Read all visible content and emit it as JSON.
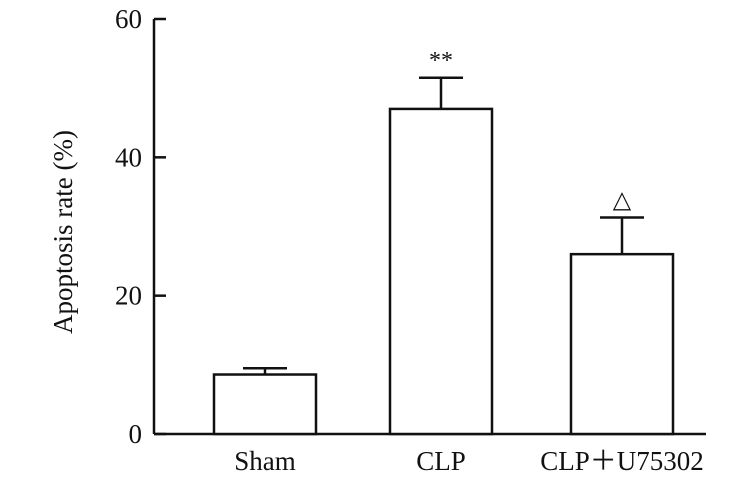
{
  "chart_data": {
    "type": "bar",
    "title": "",
    "xlabel": "",
    "ylabel": "Apoptosis rate (%)",
    "categories": [
      "Sham",
      "CLP",
      "CLP＋U75302"
    ],
    "values": [
      8.6,
      47.0,
      26.0
    ],
    "errors": [
      0.9,
      4.5,
      5.3
    ],
    "annotations": [
      "",
      "**",
      "△"
    ],
    "ylim": [
      0,
      60
    ],
    "yticks": [
      0,
      20,
      40,
      60
    ],
    "grid": false,
    "legend": "none",
    "colors": {
      "bar_fill": "#ffffff",
      "stroke": "#111111"
    }
  }
}
